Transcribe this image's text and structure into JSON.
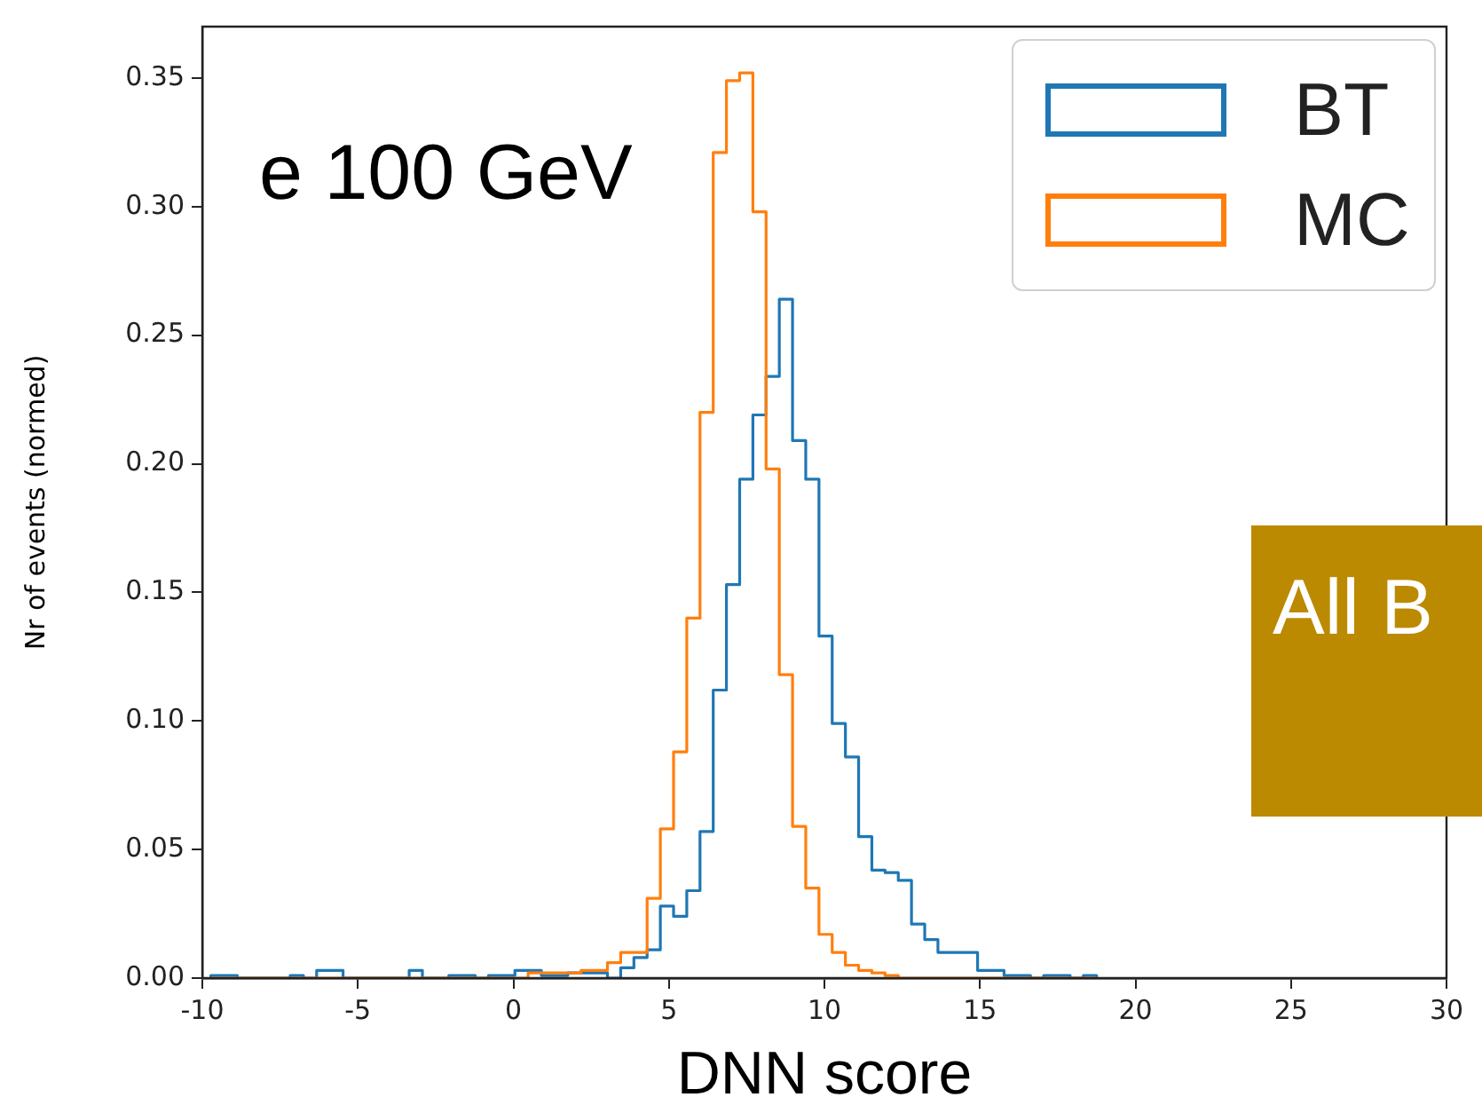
{
  "chart_data": {
    "type": "histogram",
    "xlabel": "DNN score",
    "ylabel": "Nr of events (normed)",
    "bins": [
      -9.725,
      -9.3,
      -8.875,
      -8.45,
      -8.025,
      -7.6,
      -7.175,
      -6.75,
      -6.325,
      -5.9,
      -5.475,
      -5.05,
      -4.625,
      -4.2,
      -3.775,
      -3.35,
      -2.925,
      -2.5,
      -2.075,
      -1.65,
      -1.225,
      -0.8,
      -0.375,
      0.05,
      0.475,
      0.9,
      1.325,
      1.75,
      2.175,
      2.6,
      3.025,
      3.45,
      3.875,
      4.3,
      4.725,
      5.15,
      5.575,
      6.0,
      6.425,
      6.85,
      7.275,
      7.7,
      8.125,
      8.55,
      8.975,
      9.4,
      9.825,
      10.25,
      10.675,
      11.1,
      11.525,
      11.95,
      12.375,
      12.8,
      13.225,
      13.65,
      14.075,
      14.5,
      14.925,
      15.35,
      15.775,
      16.2,
      16.625,
      17.05,
      17.475,
      17.9,
      18.325,
      18.75
    ],
    "series": [
      {
        "name": "BT",
        "color": "#1f77b4",
        "values": [
          0.001,
          0.001,
          0,
          0,
          0,
          0,
          0.001,
          0,
          0.003,
          0.003,
          0,
          0,
          0,
          0,
          0,
          0.003,
          0,
          0,
          0.001,
          0.001,
          0,
          0.001,
          0.001,
          0.003,
          0.003,
          0.001,
          0.001,
          0.002,
          0.002,
          0.002,
          0,
          0.004,
          0.008,
          0.011,
          0.028,
          0.024,
          0.034,
          0.057,
          0.112,
          0.153,
          0.194,
          0.219,
          0.234,
          0.264,
          0.209,
          0.194,
          0.133,
          0.099,
          0.086,
          0.055,
          0.042,
          0.041,
          0.038,
          0.021,
          0.015,
          0.01,
          0.01,
          0.01,
          0.003,
          0.003,
          0.001,
          0.001,
          0,
          0.001,
          0.001,
          0,
          0.001
        ]
      },
      {
        "name": "MC",
        "color": "#ff7f0e",
        "values": [
          0,
          0,
          0,
          0,
          0,
          0,
          0,
          0,
          0,
          0,
          0,
          0,
          0,
          0,
          0,
          0,
          0,
          0,
          0,
          0,
          0,
          0,
          0,
          0,
          0.002,
          0.002,
          0.002,
          0.002,
          0.003,
          0.003,
          0.006,
          0.01,
          0.01,
          0.031,
          0.058,
          0.088,
          0.14,
          0.22,
          0.321,
          0.349,
          0.352,
          0.298,
          0.198,
          0.118,
          0.059,
          0.035,
          0.017,
          0.01,
          0.005,
          0.003,
          0.002,
          0.001,
          0,
          0,
          0,
          0,
          0,
          0,
          0,
          0,
          0,
          0,
          0,
          0,
          0,
          0,
          0
        ]
      }
    ],
    "xlim": [
      -10,
      30
    ],
    "xticks": [
      -10,
      -5,
      0,
      5,
      10,
      15,
      20,
      25,
      30
    ],
    "ylim": [
      0,
      0.37
    ],
    "yticks": [
      {
        "value": 0,
        "label": "0.00"
      },
      {
        "value": 0.05,
        "label": "0.05"
      },
      {
        "value": 0.1,
        "label": "0.10"
      },
      {
        "value": 0.15,
        "label": "0.15"
      },
      {
        "value": 0.2,
        "label": "0.20"
      },
      {
        "value": 0.25,
        "label": "0.25"
      },
      {
        "value": 0.3,
        "label": "0.30"
      },
      {
        "value": 0.35,
        "label": "0.35"
      }
    ],
    "grid": false,
    "legend": "top right",
    "annotations": [
      "e 100 GeV",
      "All B"
    ]
  }
}
